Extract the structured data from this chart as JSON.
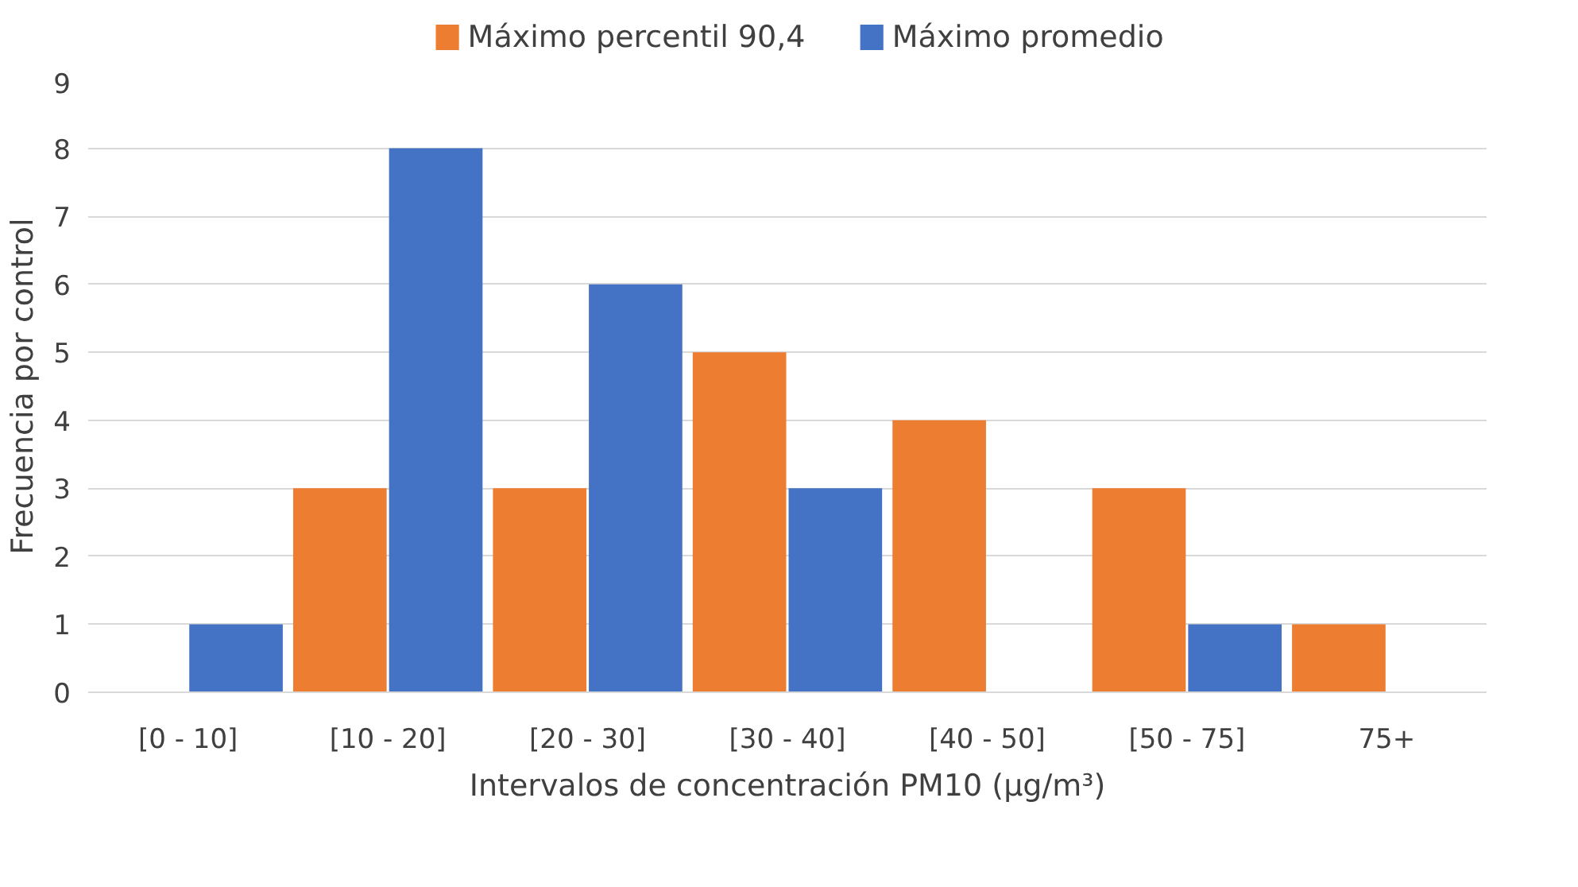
{
  "chart_data": {
    "type": "bar",
    "xlabel": "Intervalos de concentración PM10 (µg/m³)",
    "ylabel": "Frecuencia por control",
    "categories": [
      "[0 - 10]",
      "[10 - 20]",
      "[20 - 30]",
      "[30 - 40]",
      "[40 - 50]",
      "[50 - 75]",
      "75+"
    ],
    "series": [
      {
        "name": "Máximo percentil 90,4",
        "color": "#ed7d31",
        "values": [
          0,
          3,
          3,
          5,
          4,
          3,
          1
        ]
      },
      {
        "name": "Máximo promedio",
        "color": "#4472c4",
        "values": [
          1,
          8,
          6,
          3,
          0,
          1,
          0
        ]
      }
    ],
    "ylim": [
      0,
      9
    ],
    "yticks": [
      0,
      1,
      2,
      3,
      4,
      5,
      6,
      7,
      8,
      9
    ],
    "grid": "y",
    "legend": "top"
  }
}
